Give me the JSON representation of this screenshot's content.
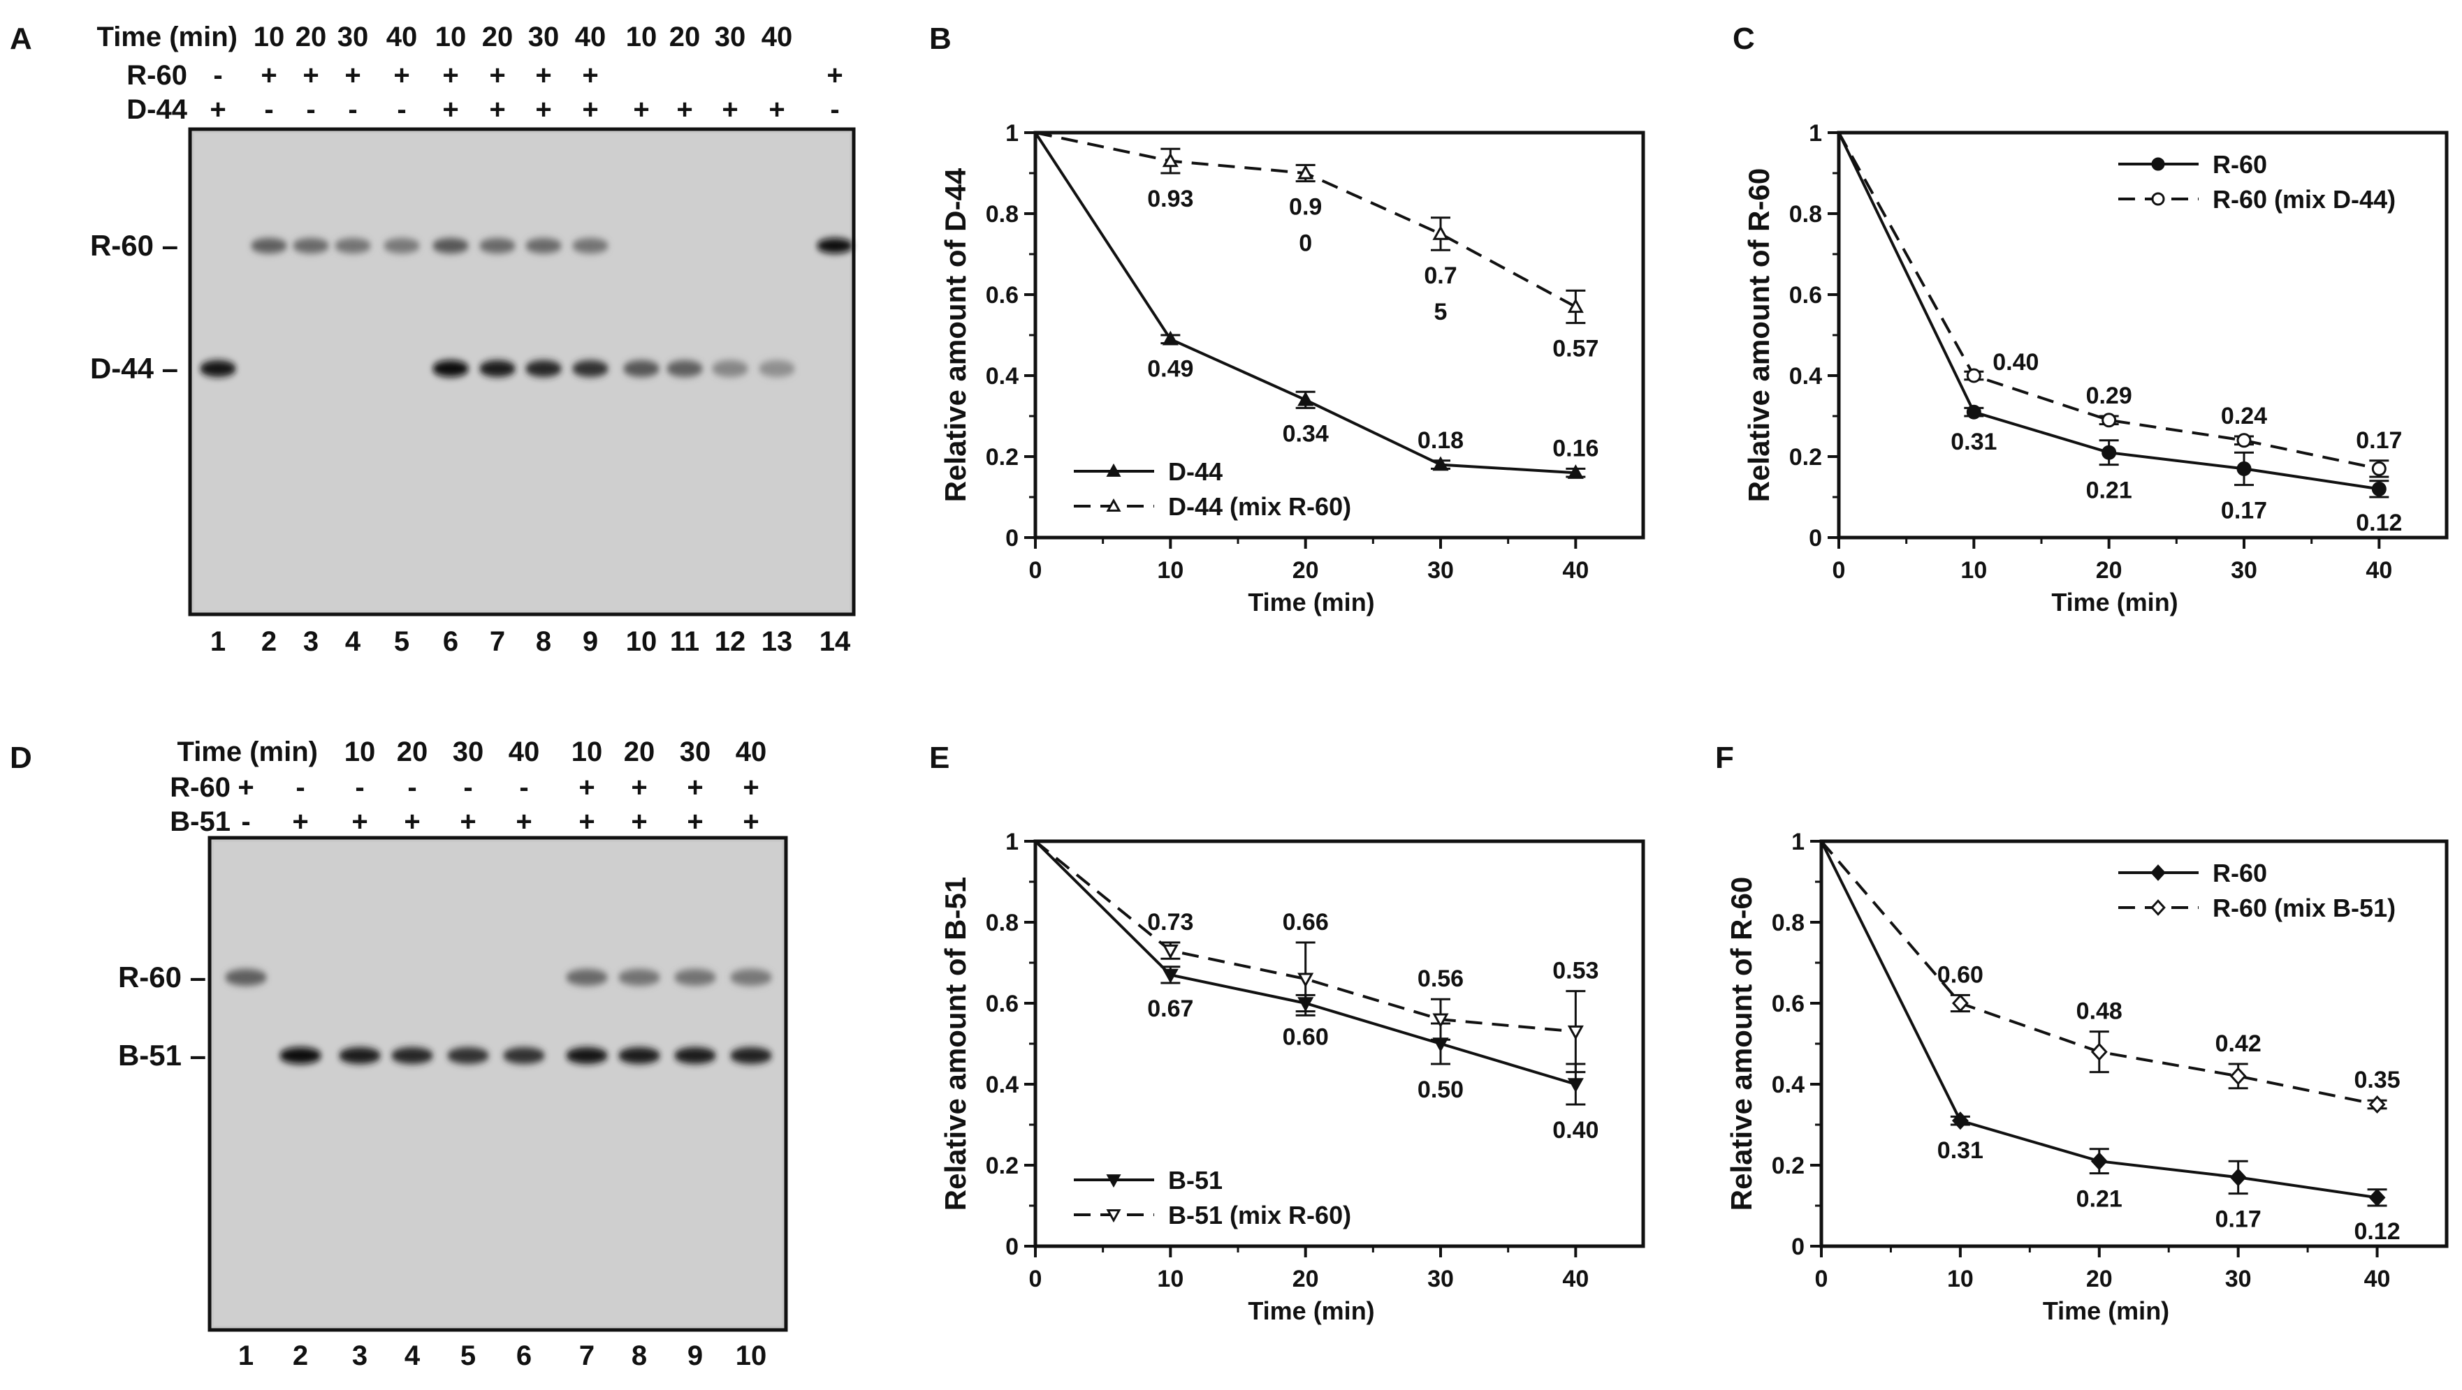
{
  "gel_a": {
    "label": "A",
    "time_header": "Time (min)",
    "rows": [
      {
        "label": "Time (min)",
        "cells": [
          "",
          "10",
          "20",
          "30",
          "40",
          "10",
          "20",
          "30",
          "40",
          "10",
          "20",
          "30",
          "40",
          ""
        ]
      },
      {
        "label": "R-60",
        "cells": [
          "-",
          "+",
          "+",
          "+",
          "+",
          "+",
          "+",
          "+",
          "+",
          "",
          "",
          "",
          "",
          "+"
        ]
      },
      {
        "label": "D-44",
        "cells": [
          "+",
          "-",
          "-",
          "-",
          "-",
          "+",
          "+",
          "+",
          "+",
          "+",
          "+",
          "+",
          "+",
          "-"
        ]
      }
    ],
    "lane_numbers": [
      "1",
      "2",
      "3",
      "4",
      "5",
      "6",
      "7",
      "8",
      "9",
      "10",
      "11",
      "12",
      "13",
      "14"
    ],
    "band_labels": [
      "R-60 –",
      "D-44 –"
    ],
    "bands": {
      "r60_intensity": [
        0,
        0.55,
        0.5,
        0.45,
        0.42,
        0.6,
        0.5,
        0.5,
        0.45,
        0,
        0,
        0,
        0,
        1.0
      ],
      "d44_intensity": [
        0.95,
        0,
        0,
        0,
        0,
        1.0,
        0.9,
        0.85,
        0.8,
        0.6,
        0.55,
        0.35,
        0.3,
        0
      ]
    }
  },
  "gel_d": {
    "label": "D",
    "rows": [
      {
        "label": "Time (min)",
        "cells": [
          "",
          "",
          "10",
          "20",
          "30",
          "40",
          "10",
          "20",
          "30",
          "40"
        ]
      },
      {
        "label": "R-60",
        "cells": [
          "+",
          "-",
          "-",
          "-",
          "-",
          "-",
          "+",
          "+",
          "+",
          "+"
        ]
      },
      {
        "label": "B-51",
        "cells": [
          "-",
          "+",
          "+",
          "+",
          "+",
          "+",
          "+",
          "+",
          "+",
          "+"
        ]
      }
    ],
    "lane_numbers": [
      "1",
      "2",
      "3",
      "4",
      "5",
      "6",
      "7",
      "8",
      "9",
      "10"
    ],
    "band_labels": [
      "R-60 –",
      "B-51 –"
    ],
    "bands": {
      "r60_intensity": [
        0.55,
        0,
        0,
        0,
        0,
        0,
        0.5,
        0.45,
        0.45,
        0.42
      ],
      "b51_intensity": [
        0,
        1.0,
        0.9,
        0.85,
        0.8,
        0.8,
        0.95,
        0.9,
        0.9,
        0.88
      ]
    }
  },
  "chart_data": [
    {
      "panel": "B",
      "type": "line",
      "xlabel": "Time (min)",
      "ylabel": "Relative amount of D-44",
      "xlim": [
        0,
        45
      ],
      "ylim": [
        0,
        1
      ],
      "xticks": [
        "0",
        "10",
        "20",
        "30",
        "40"
      ],
      "yticks": [
        "0",
        "0.2",
        "0.4",
        "0.6",
        "0.8",
        "1"
      ],
      "legend_position": "bottom-left",
      "series": [
        {
          "name": "D-44",
          "style": "solid",
          "marker": "triangle-filled",
          "x": [
            0,
            10,
            20,
            30,
            40
          ],
          "y": [
            1,
            0.49,
            0.34,
            0.18,
            0.16
          ],
          "err": [
            0,
            0.01,
            0.02,
            0.01,
            0.01
          ],
          "labels": [
            "",
            "0.49",
            "0.34",
            "0.18",
            "0.16"
          ],
          "label_pos": [
            "",
            "below",
            "below",
            "above",
            "above"
          ]
        },
        {
          "name": "D-44 (mix R-60)",
          "style": "dashed",
          "marker": "triangle-open",
          "x": [
            0,
            10,
            20,
            30,
            40
          ],
          "y": [
            1,
            0.93,
            0.9,
            0.75,
            0.57
          ],
          "err": [
            0,
            0.03,
            0.02,
            0.04,
            0.04
          ],
          "labels": [
            "",
            "0.93",
            "0.9\n0",
            "0.7\n5",
            "0.57"
          ],
          "label_pos": [
            "",
            "below",
            "below",
            "below",
            "below"
          ]
        }
      ]
    },
    {
      "panel": "C",
      "type": "line",
      "xlabel": "Time (min)",
      "ylabel": "Relative amount of R-60",
      "xlim": [
        0,
        45
      ],
      "ylim": [
        0,
        1
      ],
      "xticks": [
        "0",
        "10",
        "20",
        "30",
        "40"
      ],
      "yticks": [
        "0",
        "0.2",
        "0.4",
        "0.6",
        "0.8",
        "1"
      ],
      "legend_position": "top-right",
      "series": [
        {
          "name": "R-60",
          "style": "solid",
          "marker": "circle-filled",
          "x": [
            0,
            10,
            20,
            30,
            40
          ],
          "y": [
            1,
            0.31,
            0.21,
            0.17,
            0.12
          ],
          "err": [
            0,
            0.01,
            0.03,
            0.04,
            0.02
          ],
          "labels": [
            "",
            "0.31",
            "0.21",
            "0.17",
            "0.12"
          ],
          "label_pos": [
            "",
            "below",
            "below",
            "below",
            "below"
          ]
        },
        {
          "name": "R-60 (mix D-44)",
          "style": "dashed",
          "marker": "circle-open",
          "x": [
            0,
            10,
            20,
            30,
            40
          ],
          "y": [
            1,
            0.4,
            0.29,
            0.24,
            0.17
          ],
          "err": [
            0,
            0.01,
            0.01,
            0.01,
            0.02
          ],
          "labels": [
            "",
            "0.40",
            "0.29",
            "0.24",
            "0.17"
          ],
          "label_pos": [
            "",
            "right",
            "above",
            "above",
            "above"
          ]
        }
      ]
    },
    {
      "panel": "E",
      "type": "line",
      "xlabel": "Time (min)",
      "ylabel": "Relative amount of B-51",
      "xlim": [
        0,
        45
      ],
      "ylim": [
        0,
        1
      ],
      "xticks": [
        "0",
        "10",
        "20",
        "30",
        "40"
      ],
      "yticks": [
        "0",
        "0.2",
        "0.4",
        "0.6",
        "0.8",
        "1"
      ],
      "legend_position": "bottom-left",
      "series": [
        {
          "name": "B-51",
          "style": "solid",
          "marker": "triangle-down-filled",
          "x": [
            0,
            10,
            20,
            30,
            40
          ],
          "y": [
            1,
            0.67,
            0.6,
            0.5,
            0.4
          ],
          "err": [
            0,
            0.02,
            0.02,
            0.05,
            0.05
          ],
          "labels": [
            "",
            "0.67",
            "0.60",
            "0.50",
            "0.40"
          ],
          "label_pos": [
            "",
            "below",
            "below",
            "below",
            "below"
          ]
        },
        {
          "name": "B-51 (mix R-60)",
          "style": "dashed",
          "marker": "triangle-down-open",
          "x": [
            0,
            10,
            20,
            30,
            40
          ],
          "y": [
            1,
            0.73,
            0.66,
            0.56,
            0.53
          ],
          "err": [
            0,
            0.02,
            0.09,
            0.05,
            0.1
          ],
          "labels": [
            "",
            "0.73",
            "0.66",
            "0.56",
            "0.53"
          ],
          "label_pos": [
            "",
            "above",
            "above",
            "above",
            "above"
          ]
        }
      ]
    },
    {
      "panel": "F",
      "type": "line",
      "xlabel": "Time (min)",
      "ylabel": "Relative amount of R-60",
      "xlim": [
        0,
        45
      ],
      "ylim": [
        0,
        1
      ],
      "xticks": [
        "0",
        "10",
        "20",
        "30",
        "40"
      ],
      "yticks": [
        "0",
        "0.2",
        "0.4",
        "0.6",
        "0.8",
        "1"
      ],
      "legend_position": "top-right",
      "series": [
        {
          "name": "R-60",
          "style": "solid",
          "marker": "diamond-filled",
          "x": [
            0,
            10,
            20,
            30,
            40
          ],
          "y": [
            1,
            0.31,
            0.21,
            0.17,
            0.12
          ],
          "err": [
            0,
            0.01,
            0.03,
            0.04,
            0.02
          ],
          "labels": [
            "",
            "0.31",
            "0.21",
            "0.17",
            "0.12"
          ],
          "label_pos": [
            "",
            "below",
            "below",
            "below",
            "below"
          ]
        },
        {
          "name": "R-60 (mix B-51)",
          "style": "dashed",
          "marker": "diamond-open",
          "x": [
            0,
            10,
            20,
            30,
            40
          ],
          "y": [
            1,
            0.6,
            0.48,
            0.42,
            0.35
          ],
          "err": [
            0,
            0.02,
            0.05,
            0.03,
            0.01
          ],
          "labels": [
            "",
            "0.60",
            "0.48",
            "0.42",
            "0.35"
          ],
          "label_pos": [
            "",
            "above",
            "above",
            "above",
            "above"
          ]
        }
      ]
    }
  ]
}
